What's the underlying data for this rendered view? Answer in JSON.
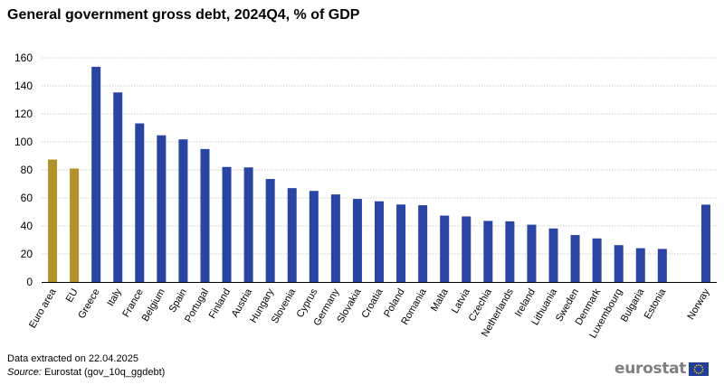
{
  "title": "General government gross debt, 2024Q4, % of GDP",
  "footer": {
    "extracted": "Data extracted  on 22.04.2025",
    "source_label": "Source:",
    "source_text": " Eurostat (gov_10q_ggdebt)"
  },
  "logo": {
    "text": "eurostat",
    "flag_icon": "eu-flag-icon"
  },
  "colors": {
    "aggregate": "#b3922b",
    "country": "#2a44a4",
    "grid": "#bfbfbf",
    "axis": "#000000"
  },
  "chart_data": {
    "type": "bar",
    "title": "General government gross debt, 2024Q4, % of GDP",
    "xlabel": "",
    "ylabel": "",
    "ylim": [
      0,
      160
    ],
    "yticks": [
      0,
      20,
      40,
      60,
      80,
      100,
      120,
      140,
      160
    ],
    "grid": true,
    "legend": "none",
    "categories": [
      "Euro area",
      "EU",
      "Greece",
      "Italy",
      "France",
      "Belgium",
      "Spain",
      "Portugal",
      "Finland",
      "Austria",
      "Hungary",
      "Slovenia",
      "Cyprus",
      "Germany",
      "Slovakia",
      "Croatia",
      "Poland",
      "Romania",
      "Malta",
      "Latvia",
      "Czechia",
      "Netherlands",
      "Ireland",
      "Lithuania",
      "Sweden",
      "Denmark",
      "Luxembourg",
      "Bulgaria",
      "Estonia",
      "",
      "Norway"
    ],
    "values": [
      87.4,
      81.0,
      153.6,
      135.3,
      113.2,
      104.7,
      101.8,
      94.9,
      82.1,
      81.8,
      73.5,
      67.0,
      65.0,
      62.5,
      59.3,
      57.6,
      55.3,
      54.8,
      47.4,
      46.8,
      43.6,
      43.3,
      40.9,
      38.2,
      33.5,
      31.1,
      26.3,
      24.1,
      23.6,
      null,
      55.2
    ],
    "groups": [
      "aggregate",
      "aggregate",
      "country",
      "country",
      "country",
      "country",
      "country",
      "country",
      "country",
      "country",
      "country",
      "country",
      "country",
      "country",
      "country",
      "country",
      "country",
      "country",
      "country",
      "country",
      "country",
      "country",
      "country",
      "country",
      "country",
      "country",
      "country",
      "country",
      "country",
      "gap",
      "country"
    ]
  }
}
